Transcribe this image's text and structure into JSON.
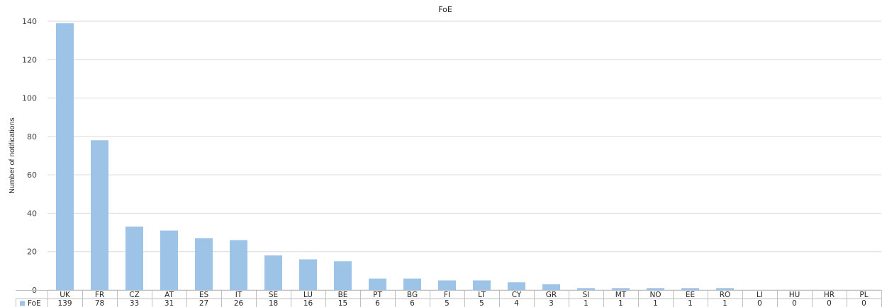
{
  "chart_data": {
    "type": "bar",
    "title": "FoE",
    "ylabel": "Number of notifications",
    "xlabel": "",
    "ylim": [
      0,
      140
    ],
    "yticks": [
      0,
      20,
      40,
      60,
      80,
      100,
      120,
      140
    ],
    "grid": true,
    "legend": "data-table",
    "categories": [
      "UK",
      "FR",
      "CZ",
      "AT",
      "ES",
      "IT",
      "SE",
      "LU",
      "BE",
      "PT",
      "BG",
      "FI",
      "LT",
      "CY",
      "GR",
      "SI",
      "MT",
      "NO",
      "EE",
      "RO",
      "LI",
      "HU",
      "HR",
      "PL"
    ],
    "series": [
      {
        "name": "FoE",
        "color": "#9dc3e6",
        "values": [
          139,
          78,
          33,
          31,
          27,
          26,
          18,
          16,
          15,
          6,
          6,
          5,
          5,
          4,
          3,
          1,
          1,
          1,
          1,
          1,
          0,
          0,
          0,
          0
        ]
      }
    ]
  }
}
